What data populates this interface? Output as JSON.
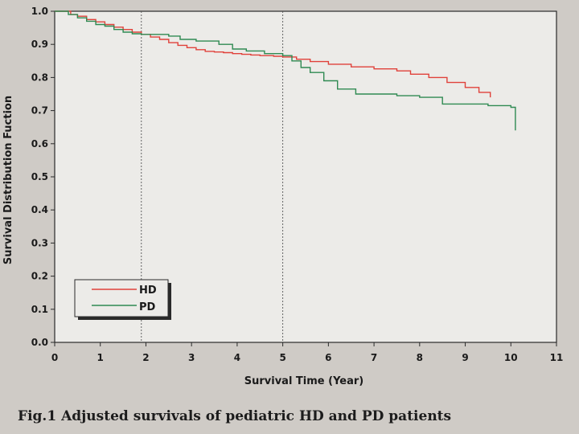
{
  "chart_data": {
    "type": "line",
    "title": "",
    "xlabel": "Survival Time (Year)",
    "ylabel": "Survival Distribution Fuction",
    "xlim": [
      0,
      11
    ],
    "ylim": [
      0,
      1.0
    ],
    "x_ticks": [
      "0",
      "1",
      "2",
      "3",
      "4",
      "5",
      "6",
      "7",
      "8",
      "9",
      "10",
      "11"
    ],
    "y_ticks": [
      "0.0",
      "0.1",
      "0.2",
      "0.3",
      "0.4",
      "0.5",
      "0.6",
      "0.7",
      "0.8",
      "0.9",
      "1.0"
    ],
    "reference_lines_x": [
      1.9,
      5.0
    ],
    "legend_position": "bottom-left",
    "series": [
      {
        "name": "HD",
        "color": "#e0413a",
        "points": [
          [
            0,
            1.0
          ],
          [
            0.2,
            1.0
          ],
          [
            0.35,
            0.99
          ],
          [
            0.5,
            0.985
          ],
          [
            0.7,
            0.975
          ],
          [
            0.9,
            0.968
          ],
          [
            1.1,
            0.96
          ],
          [
            1.3,
            0.952
          ],
          [
            1.5,
            0.945
          ],
          [
            1.7,
            0.937
          ],
          [
            1.9,
            0.93
          ],
          [
            2.1,
            0.922
          ],
          [
            2.3,
            0.915
          ],
          [
            2.5,
            0.905
          ],
          [
            2.7,
            0.897
          ],
          [
            2.9,
            0.89
          ],
          [
            3.1,
            0.884
          ],
          [
            3.3,
            0.879
          ],
          [
            3.5,
            0.877
          ],
          [
            3.7,
            0.875
          ],
          [
            3.9,
            0.872
          ],
          [
            4.1,
            0.87
          ],
          [
            4.3,
            0.868
          ],
          [
            4.5,
            0.866
          ],
          [
            4.8,
            0.864
          ],
          [
            5.0,
            0.862
          ],
          [
            5.3,
            0.855
          ],
          [
            5.6,
            0.848
          ],
          [
            6.0,
            0.84
          ],
          [
            6.5,
            0.832
          ],
          [
            7.0,
            0.826
          ],
          [
            7.5,
            0.82
          ],
          [
            7.8,
            0.81
          ],
          [
            8.2,
            0.8
          ],
          [
            8.6,
            0.785
          ],
          [
            9.0,
            0.77
          ],
          [
            9.3,
            0.755
          ],
          [
            9.55,
            0.74
          ]
        ]
      },
      {
        "name": "PD",
        "color": "#2f8a52",
        "points": [
          [
            0,
            1.0
          ],
          [
            0.2,
            1.0
          ],
          [
            0.3,
            0.99
          ],
          [
            0.5,
            0.98
          ],
          [
            0.7,
            0.97
          ],
          [
            0.9,
            0.96
          ],
          [
            1.1,
            0.955
          ],
          [
            1.3,
            0.945
          ],
          [
            1.5,
            0.937
          ],
          [
            1.7,
            0.932
          ],
          [
            1.9,
            0.93
          ],
          [
            2.1,
            0.93
          ],
          [
            2.5,
            0.925
          ],
          [
            2.75,
            0.915
          ],
          [
            3.1,
            0.91
          ],
          [
            3.6,
            0.9
          ],
          [
            3.9,
            0.886
          ],
          [
            4.2,
            0.88
          ],
          [
            4.6,
            0.872
          ],
          [
            5.0,
            0.866
          ],
          [
            5.2,
            0.85
          ],
          [
            5.4,
            0.83
          ],
          [
            5.6,
            0.815
          ],
          [
            5.9,
            0.79
          ],
          [
            6.2,
            0.765
          ],
          [
            6.6,
            0.75
          ],
          [
            7.5,
            0.745
          ],
          [
            8.0,
            0.74
          ],
          [
            8.5,
            0.72
          ],
          [
            9.5,
            0.715
          ],
          [
            10.0,
            0.71
          ],
          [
            10.1,
            0.64
          ]
        ]
      }
    ]
  },
  "caption": "Fig.1 Adjusted survivals of pediatric HD and PD patients"
}
